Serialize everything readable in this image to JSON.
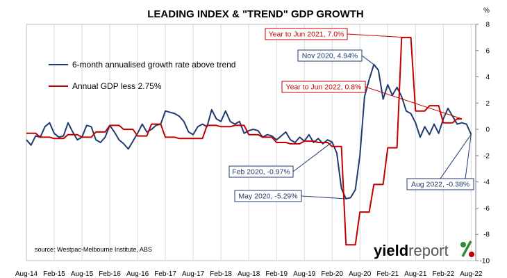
{
  "chart_data": {
    "type": "line",
    "title": "LEADING INDEX & \"TREND\" GDP GROWTH",
    "ylabel": "%",
    "ylim": [
      -10,
      8
    ],
    "yticks": [
      8,
      6,
      4,
      2,
      0,
      -2,
      -4,
      -6,
      -8,
      -10
    ],
    "xlim": [
      "2014-08",
      "2022-09"
    ],
    "xticks": [
      "Aug-14",
      "Feb-15",
      "Aug-15",
      "Feb-16",
      "Aug-16",
      "Feb-17",
      "Aug-17",
      "Feb-18",
      "Aug-18",
      "Feb-19",
      "Aug-19",
      "Feb-20",
      "Aug-20",
      "Feb-21",
      "Aug-21",
      "Feb-22",
      "Aug-22"
    ],
    "grid": "vertical",
    "legend_position": "top-left",
    "colors": {
      "leading": "#1f3a6e",
      "gdp": "#c00000"
    },
    "series": [
      {
        "name": "6-month annualised growth rate above trend",
        "color": "#1f3a6e",
        "x": [
          "2014-08",
          "2014-09",
          "2014-10",
          "2014-11",
          "2014-12",
          "2015-01",
          "2015-02",
          "2015-03",
          "2015-04",
          "2015-05",
          "2015-06",
          "2015-07",
          "2015-08",
          "2015-09",
          "2015-10",
          "2015-11",
          "2015-12",
          "2016-01",
          "2016-02",
          "2016-03",
          "2016-04",
          "2016-05",
          "2016-06",
          "2016-07",
          "2016-08",
          "2016-09",
          "2016-10",
          "2016-11",
          "2016-12",
          "2017-01",
          "2017-02",
          "2017-03",
          "2017-04",
          "2017-05",
          "2017-06",
          "2017-07",
          "2017-08",
          "2017-09",
          "2017-10",
          "2017-11",
          "2017-12",
          "2018-01",
          "2018-02",
          "2018-03",
          "2018-04",
          "2018-05",
          "2018-06",
          "2018-07",
          "2018-08",
          "2018-09",
          "2018-10",
          "2018-11",
          "2018-12",
          "2019-01",
          "2019-02",
          "2019-03",
          "2019-04",
          "2019-05",
          "2019-06",
          "2019-07",
          "2019-08",
          "2019-09",
          "2019-10",
          "2019-11",
          "2019-12",
          "2020-01",
          "2020-02",
          "2020-03",
          "2020-04",
          "2020-05",
          "2020-06",
          "2020-07",
          "2020-08",
          "2020-09",
          "2020-10",
          "2020-11",
          "2020-12",
          "2021-01",
          "2021-02",
          "2021-03",
          "2021-04",
          "2021-05",
          "2021-06",
          "2021-07",
          "2021-08",
          "2021-09",
          "2021-10",
          "2021-11",
          "2021-12",
          "2022-01",
          "2022-02",
          "2022-03",
          "2022-04",
          "2022-05",
          "2022-06",
          "2022-07",
          "2022-08"
        ],
        "values": [
          -0.8,
          -1.2,
          -0.5,
          -0.6,
          0.2,
          0.5,
          -0.3,
          -0.6,
          -0.5,
          0.5,
          -0.2,
          -0.8,
          -0.6,
          0.3,
          0.2,
          -0.8,
          -1.0,
          -0.6,
          0.3,
          -0.2,
          -0.8,
          -1.1,
          -1.5,
          -0.9,
          -0.3,
          0.4,
          -0.2,
          0.0,
          0.3,
          0.4,
          1.4,
          1.3,
          1.2,
          1.0,
          0.6,
          -0.2,
          -0.4,
          0.2,
          0.4,
          0.2,
          1.5,
          0.8,
          0.6,
          1.4,
          0.6,
          0.4,
          0.6,
          -0.3,
          -0.1,
          0.0,
          -0.1,
          -0.6,
          -0.4,
          -0.5,
          -0.8,
          -0.5,
          -0.2,
          -0.8,
          -1.0,
          -0.6,
          -0.9,
          -0.4,
          -1.0,
          -0.7,
          -1.1,
          -0.8,
          -0.97,
          -1.8,
          -4.5,
          -5.29,
          -5.2,
          -4.6,
          -2.0,
          2.5,
          3.8,
          4.94,
          4.5,
          2.3,
          3.4,
          2.6,
          3.2,
          2.5,
          1.4,
          1.2,
          0.5,
          -0.6,
          0.2,
          -0.4,
          0.4,
          -0.3,
          0.8,
          1.6,
          1.0,
          0.4,
          0.5,
          0.4,
          -0.38
        ]
      },
      {
        "name": "Annual GDP less 2.75%",
        "color": "#c00000",
        "x": [
          "2014-08",
          "2014-09",
          "2014-10",
          "2014-11",
          "2014-12",
          "2015-01",
          "2015-02",
          "2015-03",
          "2015-04",
          "2015-05",
          "2015-06",
          "2015-07",
          "2015-08",
          "2015-09",
          "2015-10",
          "2015-11",
          "2015-12",
          "2016-01",
          "2016-02",
          "2016-03",
          "2016-04",
          "2016-05",
          "2016-06",
          "2016-07",
          "2016-08",
          "2016-09",
          "2016-10",
          "2016-11",
          "2016-12",
          "2017-01",
          "2017-02",
          "2017-03",
          "2017-04",
          "2017-05",
          "2017-06",
          "2017-07",
          "2017-08",
          "2017-09",
          "2017-10",
          "2017-11",
          "2017-12",
          "2018-01",
          "2018-02",
          "2018-03",
          "2018-04",
          "2018-05",
          "2018-06",
          "2018-07",
          "2018-08",
          "2018-09",
          "2018-10",
          "2018-11",
          "2018-12",
          "2019-01",
          "2019-02",
          "2019-03",
          "2019-04",
          "2019-05",
          "2019-06",
          "2019-07",
          "2019-08",
          "2019-09",
          "2019-10",
          "2019-11",
          "2019-12",
          "2020-01",
          "2020-02",
          "2020-03",
          "2020-04",
          "2020-05",
          "2020-06",
          "2020-07",
          "2020-08",
          "2020-09",
          "2020-10",
          "2020-11",
          "2020-12",
          "2021-01",
          "2021-02",
          "2021-03",
          "2021-04",
          "2021-05",
          "2021-06",
          "2021-07",
          "2021-08",
          "2021-09",
          "2021-10",
          "2021-11",
          "2021-12",
          "2022-01",
          "2022-02",
          "2022-03",
          "2022-04",
          "2022-05",
          "2022-06"
        ],
        "values": [
          -0.3,
          -0.3,
          -0.3,
          -0.6,
          -0.6,
          -0.6,
          -0.7,
          -0.7,
          -0.7,
          -0.4,
          -0.4,
          -0.4,
          -0.6,
          -0.6,
          -0.6,
          -0.2,
          -0.2,
          -0.2,
          0.3,
          0.3,
          0.3,
          0.0,
          0.0,
          0.0,
          -0.5,
          -0.5,
          -0.5,
          0.4,
          0.4,
          0.4,
          -0.6,
          -0.6,
          -0.6,
          -0.7,
          -0.7,
          -0.7,
          -0.7,
          -0.7,
          -0.7,
          0.3,
          0.3,
          0.3,
          0.2,
          0.2,
          0.2,
          0.3,
          0.3,
          0.3,
          -0.4,
          -0.4,
          -0.4,
          -0.6,
          -0.6,
          -0.6,
          -1.0,
          -1.0,
          -1.0,
          -1.1,
          -1.1,
          -1.1,
          -0.9,
          -0.9,
          -0.9,
          -1.0,
          -1.0,
          -1.0,
          -1.3,
          -1.3,
          -1.3,
          -8.8,
          -8.8,
          -8.8,
          -6.3,
          -6.3,
          -6.3,
          -4.2,
          -4.2,
          -4.2,
          -1.4,
          -1.4,
          -1.4,
          7.0,
          7.0,
          7.0,
          1.4,
          1.4,
          1.4,
          1.8,
          1.8,
          1.8,
          0.5,
          0.5,
          0.5,
          0.8,
          0.8
        ]
      }
    ],
    "annotations": [
      {
        "text": "Year to Jun 2021, 7.0%",
        "color": "#c00000",
        "point_x": "2021-06",
        "point_y": 7.0
      },
      {
        "text": "Nov 2020, 4.94%",
        "color": "#1f3a6e",
        "point_x": "2020-11",
        "point_y": 4.94
      },
      {
        "text": "Year to Jun 2022, 0.8%",
        "color": "#c00000",
        "point_x": "2022-06",
        "point_y": 0.8
      },
      {
        "text": "Feb 2020, -0.97%",
        "color": "#1f3a6e",
        "point_x": "2020-02",
        "point_y": -0.97
      },
      {
        "text": "May 2020, -5.29%",
        "color": "#1f3a6e",
        "point_x": "2020-05",
        "point_y": -5.29
      },
      {
        "text": "Aug 2022, -0.38%",
        "color": "#1f3a6e",
        "point_x": "2022-08",
        "point_y": -0.38
      }
    ]
  },
  "source": "source: Westpac-Melbourne Institute, ABS",
  "logo": {
    "part1": "yield",
    "part2": "report",
    "symbol": "%",
    "symbol_colors": [
      "#2e8b3a",
      "#c00000"
    ]
  }
}
